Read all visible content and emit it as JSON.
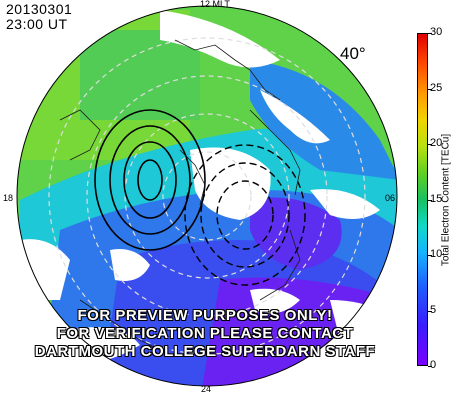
{
  "header": {
    "date": "20130301",
    "time": "23:00 UT"
  },
  "map": {
    "mlt_labels": {
      "top": "12 MLT",
      "bottom": "24",
      "left": "18",
      "right": "06"
    },
    "latitude_label": "40°",
    "watermark_lines": [
      "FOR PREVIEW PURPOSES ONLY!",
      "FOR VERIFICATION PLEASE CONTACT",
      "DARTMOUTH COLLEGE SUPERDARN STAFF"
    ]
  },
  "colorbar": {
    "label": "Total Electron Content [TECu]",
    "ticks": [
      "30",
      "25",
      "20",
      "15",
      "10",
      "5",
      "0"
    ],
    "min": 0,
    "max": 30
  },
  "colors": {
    "background_green": "#3cc85a",
    "mid_blue": "#2f62e8",
    "low_violet": "#6a22f2",
    "cyan": "#18c8e0"
  }
}
